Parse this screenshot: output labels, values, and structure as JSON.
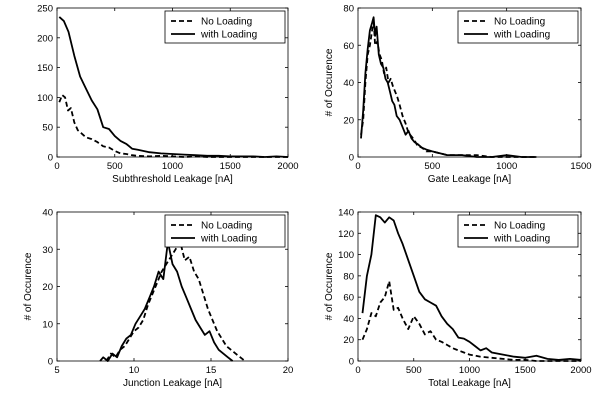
{
  "chart_data": [
    {
      "type": "line",
      "title": "",
      "xlabel": "Subthreshold Leakage [nA]",
      "ylabel": "",
      "xlim": [
        0,
        2000
      ],
      "ylim": [
        0,
        250
      ],
      "xticks": [
        "0",
        "500",
        "1000",
        "1500",
        "2000"
      ],
      "yticks": [
        "0",
        "50",
        "100",
        "150",
        "200",
        "250"
      ],
      "legend_position": "top-right",
      "grid": false,
      "series": [
        {
          "name": "No Loading",
          "style": "dashed",
          "x": [
            20,
            45,
            70,
            95,
            120,
            150,
            180,
            210,
            250,
            300,
            350,
            400,
            450,
            500,
            550,
            600,
            650,
            700,
            800,
            900,
            1000,
            1100,
            1200,
            1300,
            1400,
            1500,
            1600,
            1700,
            1800,
            1900,
            2000
          ],
          "y": [
            92,
            104,
            100,
            78,
            82,
            58,
            45,
            40,
            33,
            30,
            25,
            18,
            16,
            10,
            6,
            5,
            3,
            2,
            1,
            2,
            1,
            0,
            1,
            0,
            0,
            0,
            0,
            0,
            0,
            0,
            0
          ]
        },
        {
          "name": "with Loading",
          "style": "solid",
          "x": [
            20,
            60,
            100,
            150,
            200,
            250,
            300,
            350,
            400,
            450,
            500,
            550,
            600,
            650,
            700,
            800,
            900,
            1000,
            1100,
            1200,
            1300,
            1400,
            1500,
            1600,
            1700,
            1800,
            1900,
            2000
          ],
          "y": [
            235,
            228,
            210,
            170,
            135,
            115,
            95,
            80,
            50,
            47,
            35,
            27,
            22,
            14,
            12,
            8,
            6,
            5,
            4,
            3,
            2,
            2,
            1,
            1,
            1,
            0,
            1,
            0
          ]
        }
      ]
    },
    {
      "type": "line",
      "title": "",
      "xlabel": "Gate Leakage [nA]",
      "ylabel": "# of Occurence",
      "xlim": [
        0,
        1500
      ],
      "ylim": [
        0,
        80
      ],
      "xticks": [
        "0",
        "500",
        "1000",
        "1500"
      ],
      "yticks": [
        "0",
        "20",
        "40",
        "60",
        "80"
      ],
      "legend_position": "top-right",
      "grid": false,
      "series": [
        {
          "name": "No Loading",
          "style": "dashed",
          "x": [
            20,
            35,
            50,
            65,
            80,
            95,
            105,
            115,
            130,
            145,
            160,
            175,
            190,
            205,
            220,
            235,
            250,
            265,
            280,
            300,
            320,
            340,
            360,
            380,
            400,
            430,
            460,
            500,
            550,
            600,
            700,
            800,
            900,
            1000,
            1100,
            1200
          ],
          "y": [
            12,
            20,
            40,
            55,
            60,
            68,
            74,
            60,
            62,
            55,
            52,
            45,
            48,
            40,
            42,
            38,
            35,
            32,
            28,
            22,
            18,
            13,
            11,
            9,
            6,
            5,
            3,
            3,
            2,
            1,
            1,
            1,
            0,
            0,
            0,
            0
          ]
        },
        {
          "name": "with Loading",
          "style": "solid",
          "x": [
            20,
            35,
            50,
            65,
            80,
            95,
            105,
            115,
            125,
            140,
            155,
            170,
            185,
            200,
            215,
            230,
            245,
            260,
            280,
            300,
            320,
            340,
            360,
            380,
            400,
            430,
            460,
            500,
            550,
            600,
            700,
            800,
            900,
            1000,
            1100,
            1200
          ],
          "y": [
            10,
            25,
            45,
            58,
            68,
            72,
            75,
            65,
            70,
            55,
            50,
            48,
            42,
            40,
            35,
            30,
            28,
            22,
            20,
            16,
            12,
            14,
            10,
            8,
            7,
            5,
            4,
            3,
            2,
            1,
            1,
            0,
            0,
            1,
            0,
            0
          ]
        }
      ]
    },
    {
      "type": "line",
      "title": "",
      "xlabel": "Junction Leakage [nA]",
      "ylabel": "# of Occurence",
      "xlim": [
        5,
        20
      ],
      "ylim": [
        0,
        40
      ],
      "xticks": [
        "5",
        "10",
        "15",
        "20"
      ],
      "yticks": [
        "0",
        "10",
        "20",
        "30",
        "40"
      ],
      "legend_position": "top-right",
      "grid": false,
      "series": [
        {
          "name": "No Loading",
          "style": "dashed",
          "x": [
            8.2,
            8.5,
            8.8,
            9.1,
            9.4,
            9.7,
            10.0,
            10.3,
            10.6,
            10.9,
            11.2,
            11.5,
            11.8,
            12.1,
            12.4,
            12.7,
            13.0,
            13.3,
            13.6,
            13.9,
            14.2,
            14.5,
            14.8,
            15.1,
            15.4,
            15.7,
            16.0,
            16.3,
            16.6,
            16.9,
            17.2
          ],
          "y": [
            0,
            2,
            1,
            3,
            4,
            6,
            8,
            9,
            11,
            15,
            18,
            21,
            24,
            26,
            28,
            30,
            32,
            27,
            28,
            24,
            22,
            18,
            14,
            11,
            8,
            6,
            4,
            3,
            2,
            1,
            0
          ]
        },
        {
          "name": "with Loading",
          "style": "solid",
          "x": [
            7.8,
            8.0,
            8.3,
            8.6,
            8.9,
            9.2,
            9.5,
            9.8,
            10.1,
            10.4,
            10.7,
            11.0,
            11.3,
            11.6,
            11.9,
            12.2,
            12.5,
            12.8,
            13.1,
            13.4,
            13.7,
            14.0,
            14.3,
            14.6,
            14.9,
            15.2,
            15.5,
            15.8,
            16.1,
            16.4
          ],
          "y": [
            0,
            1,
            0,
            2,
            1,
            4,
            6,
            7,
            10,
            12,
            14,
            17,
            20,
            24,
            22,
            32,
            26,
            24,
            20,
            17,
            14,
            11,
            9,
            7,
            8,
            5,
            3,
            2,
            1,
            0
          ]
        }
      ]
    },
    {
      "type": "line",
      "title": "",
      "xlabel": "Total Leakage [nA]",
      "ylabel": "# of Occurence",
      "xlim": [
        0,
        2000
      ],
      "ylim": [
        0,
        140
      ],
      "xticks": [
        "0",
        "500",
        "1000",
        "1500",
        "2000"
      ],
      "yticks": [
        "0",
        "20",
        "40",
        "60",
        "80",
        "100",
        "120",
        "140"
      ],
      "legend_position": "top-right",
      "grid": false,
      "series": [
        {
          "name": "No Loading",
          "style": "dashed",
          "x": [
            40,
            80,
            120,
            160,
            200,
            240,
            280,
            320,
            360,
            400,
            450,
            500,
            550,
            600,
            650,
            700,
            750,
            800,
            850,
            900,
            950,
            1000,
            1100,
            1200,
            1300,
            1400,
            1500,
            1600,
            1700,
            1800,
            1900,
            2000
          ],
          "y": [
            20,
            30,
            45,
            42,
            55,
            60,
            75,
            48,
            50,
            40,
            30,
            42,
            35,
            25,
            28,
            20,
            18,
            15,
            12,
            10,
            8,
            6,
            4,
            3,
            2,
            1,
            1,
            0,
            0,
            0,
            0,
            0
          ]
        },
        {
          "name": "with Loading",
          "style": "solid",
          "x": [
            40,
            80,
            120,
            160,
            200,
            240,
            280,
            320,
            360,
            400,
            450,
            500,
            550,
            600,
            650,
            700,
            750,
            800,
            850,
            900,
            950,
            1000,
            1050,
            1100,
            1150,
            1200,
            1300,
            1400,
            1500,
            1600,
            1700,
            1800,
            1900,
            2000
          ],
          "y": [
            45,
            80,
            100,
            137,
            135,
            130,
            135,
            132,
            120,
            110,
            95,
            80,
            65,
            58,
            55,
            52,
            42,
            35,
            30,
            22,
            21,
            18,
            14,
            10,
            12,
            8,
            6,
            4,
            3,
            5,
            2,
            1,
            2,
            1
          ]
        }
      ]
    }
  ]
}
